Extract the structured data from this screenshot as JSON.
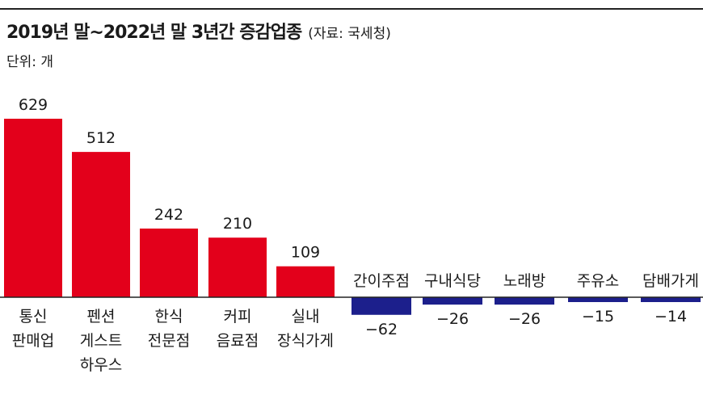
{
  "header": {
    "title": "2019년 말~2022년 말 3년간 증감업종",
    "source": "(자료: 국세청)",
    "unit": "단위: 개"
  },
  "colors": {
    "positive": "#e3001b",
    "negative": "#1c1f8c",
    "rule": "#222222"
  },
  "chart_data": {
    "type": "bar",
    "categories": [
      [
        "통신",
        "판매업"
      ],
      [
        "펜션",
        "게스트",
        "하우스"
      ],
      [
        "한식",
        "전문점"
      ],
      [
        "커피",
        "음료점"
      ],
      [
        "실내",
        "장식가게"
      ],
      [
        "간이주점"
      ],
      [
        "구내식당"
      ],
      [
        "노래방"
      ],
      [
        "주유소"
      ],
      [
        "담배가게"
      ]
    ],
    "values": [
      629,
      512,
      242,
      210,
      109,
      -62,
      -26,
      -26,
      -15,
      -14
    ],
    "value_labels": [
      "629",
      "512",
      "242",
      "210",
      "109",
      "−62",
      "−26",
      "−26",
      "−15",
      "−14"
    ],
    "title": "2019년 말~2022년 말 3년간 증감업종",
    "xlabel": "",
    "ylabel": "",
    "unit": "개",
    "ylim": [
      -70,
      700
    ],
    "grid": false
  }
}
